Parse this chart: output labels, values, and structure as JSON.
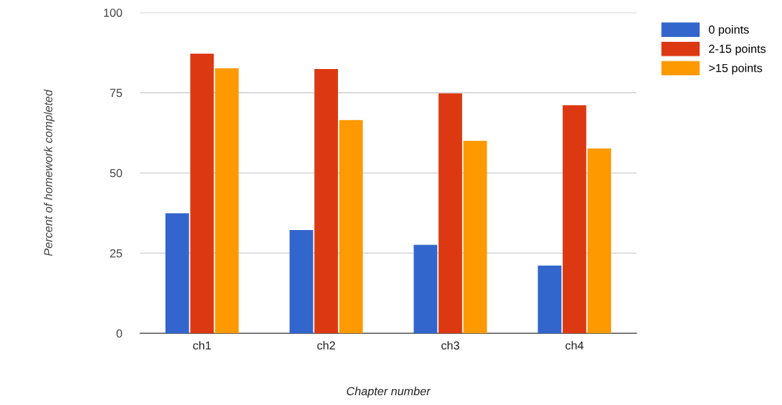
{
  "chart_data": {
    "type": "bar",
    "xlabel": "Chapter number",
    "ylabel": "Percent of homework completed",
    "categories": [
      "ch1",
      "ch2",
      "ch3",
      "ch4"
    ],
    "series": [
      {
        "name": "0 points",
        "color": "#3366cc",
        "values": [
          37.4,
          32.2,
          27.6,
          21.1
        ]
      },
      {
        "name": "2-15 points",
        "color": "#dc3912",
        "values": [
          87.2,
          82.4,
          74.8,
          71.1
        ]
      },
      {
        "name": ">15 points",
        "color": "#ff9900",
        "values": [
          82.6,
          66.5,
          60,
          57.6
        ]
      }
    ],
    "ylim": [
      0,
      100
    ],
    "yticks": [
      0,
      25,
      50,
      75,
      100
    ],
    "grid": "y",
    "legend": "top right"
  }
}
